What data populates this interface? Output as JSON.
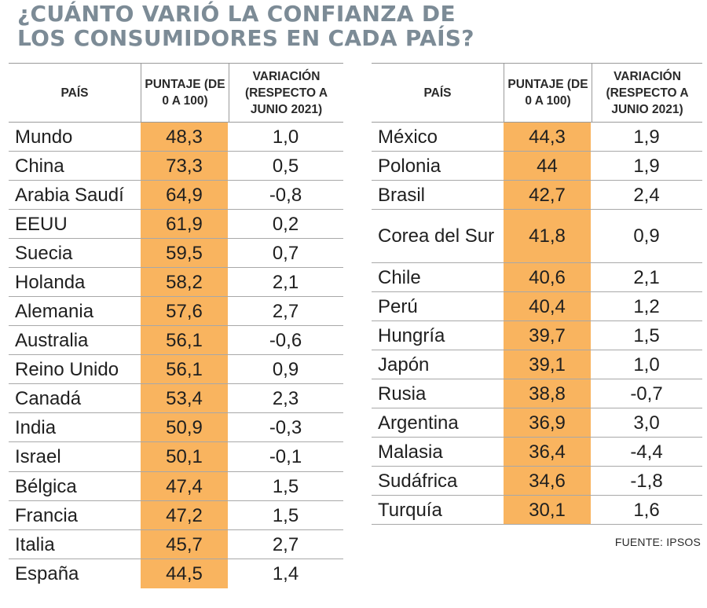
{
  "title": {
    "line1": "¿CUÁNTO VARIÓ LA CONFIANZA DE",
    "line2": "LOS CONSUMIDORES EN CADA PAÍS?"
  },
  "headers": {
    "country": "PAÍS",
    "score": "PUNTAJE (DE 0 A 100)",
    "variation": "VARIACIÓN (RESPECTO A JUNIO 2021)"
  },
  "left_table": [
    {
      "country": "Mundo",
      "score": "48,3",
      "variation": "1,0"
    },
    {
      "country": "China",
      "score": "73,3",
      "variation": "0,5"
    },
    {
      "country": "Arabia Saudí",
      "score": "64,9",
      "variation": "-0,8"
    },
    {
      "country": "EEUU",
      "score": "61,9",
      "variation": "0,2"
    },
    {
      "country": "Suecia",
      "score": "59,5",
      "variation": "0,7"
    },
    {
      "country": "Holanda",
      "score": "58,2",
      "variation": "2,1"
    },
    {
      "country": "Alemania",
      "score": "57,6",
      "variation": "2,7"
    },
    {
      "country": "Australia",
      "score": "56,1",
      "variation": "-0,6"
    },
    {
      "country": "Reino Unido",
      "score": "56,1",
      "variation": "0,9"
    },
    {
      "country": "Canadá",
      "score": "53,4",
      "variation": "2,3"
    },
    {
      "country": "India",
      "score": "50,9",
      "variation": "-0,3"
    },
    {
      "country": "Israel",
      "score": "50,1",
      "variation": "-0,1"
    },
    {
      "country": "Bélgica",
      "score": "47,4",
      "variation": "1,5"
    },
    {
      "country": "Francia",
      "score": "47,2",
      "variation": "1,5"
    },
    {
      "country": "Italia",
      "score": "45,7",
      "variation": "2,7"
    },
    {
      "country": "España",
      "score": "44,5",
      "variation": "1,4"
    }
  ],
  "right_table": [
    {
      "country": "México",
      "score": "44,3",
      "variation": "1,9"
    },
    {
      "country": "Polonia",
      "score": "44",
      "variation": "1,9"
    },
    {
      "country": "Brasil",
      "score": "42,7",
      "variation": "2,4"
    },
    {
      "country": "Corea del Sur",
      "score": "41,8",
      "variation": "0,9"
    },
    {
      "country": "Chile",
      "score": "40,6",
      "variation": "2,1"
    },
    {
      "country": "Perú",
      "score": "40,4",
      "variation": "1,2"
    },
    {
      "country": "Hungría",
      "score": "39,7",
      "variation": "1,5"
    },
    {
      "country": "Japón",
      "score": "39,1",
      "variation": "1,0"
    },
    {
      "country": "Rusia",
      "score": "38,8",
      "variation": "-0,7"
    },
    {
      "country": "Argentina",
      "score": "36,9",
      "variation": "3,0"
    },
    {
      "country": "Malasia",
      "score": "36,4",
      "variation": "-4,4"
    },
    {
      "country": "Sudáfrica",
      "score": "34,6",
      "variation": "-1,8"
    },
    {
      "country": "Turquía",
      "score": "30,1",
      "variation": "1,6"
    }
  ],
  "source": "FUENTE: IPSOS",
  "colors": {
    "title": "#7c8b96",
    "score_highlight": "#f9b45f",
    "rule": "#a8a8a8"
  }
}
